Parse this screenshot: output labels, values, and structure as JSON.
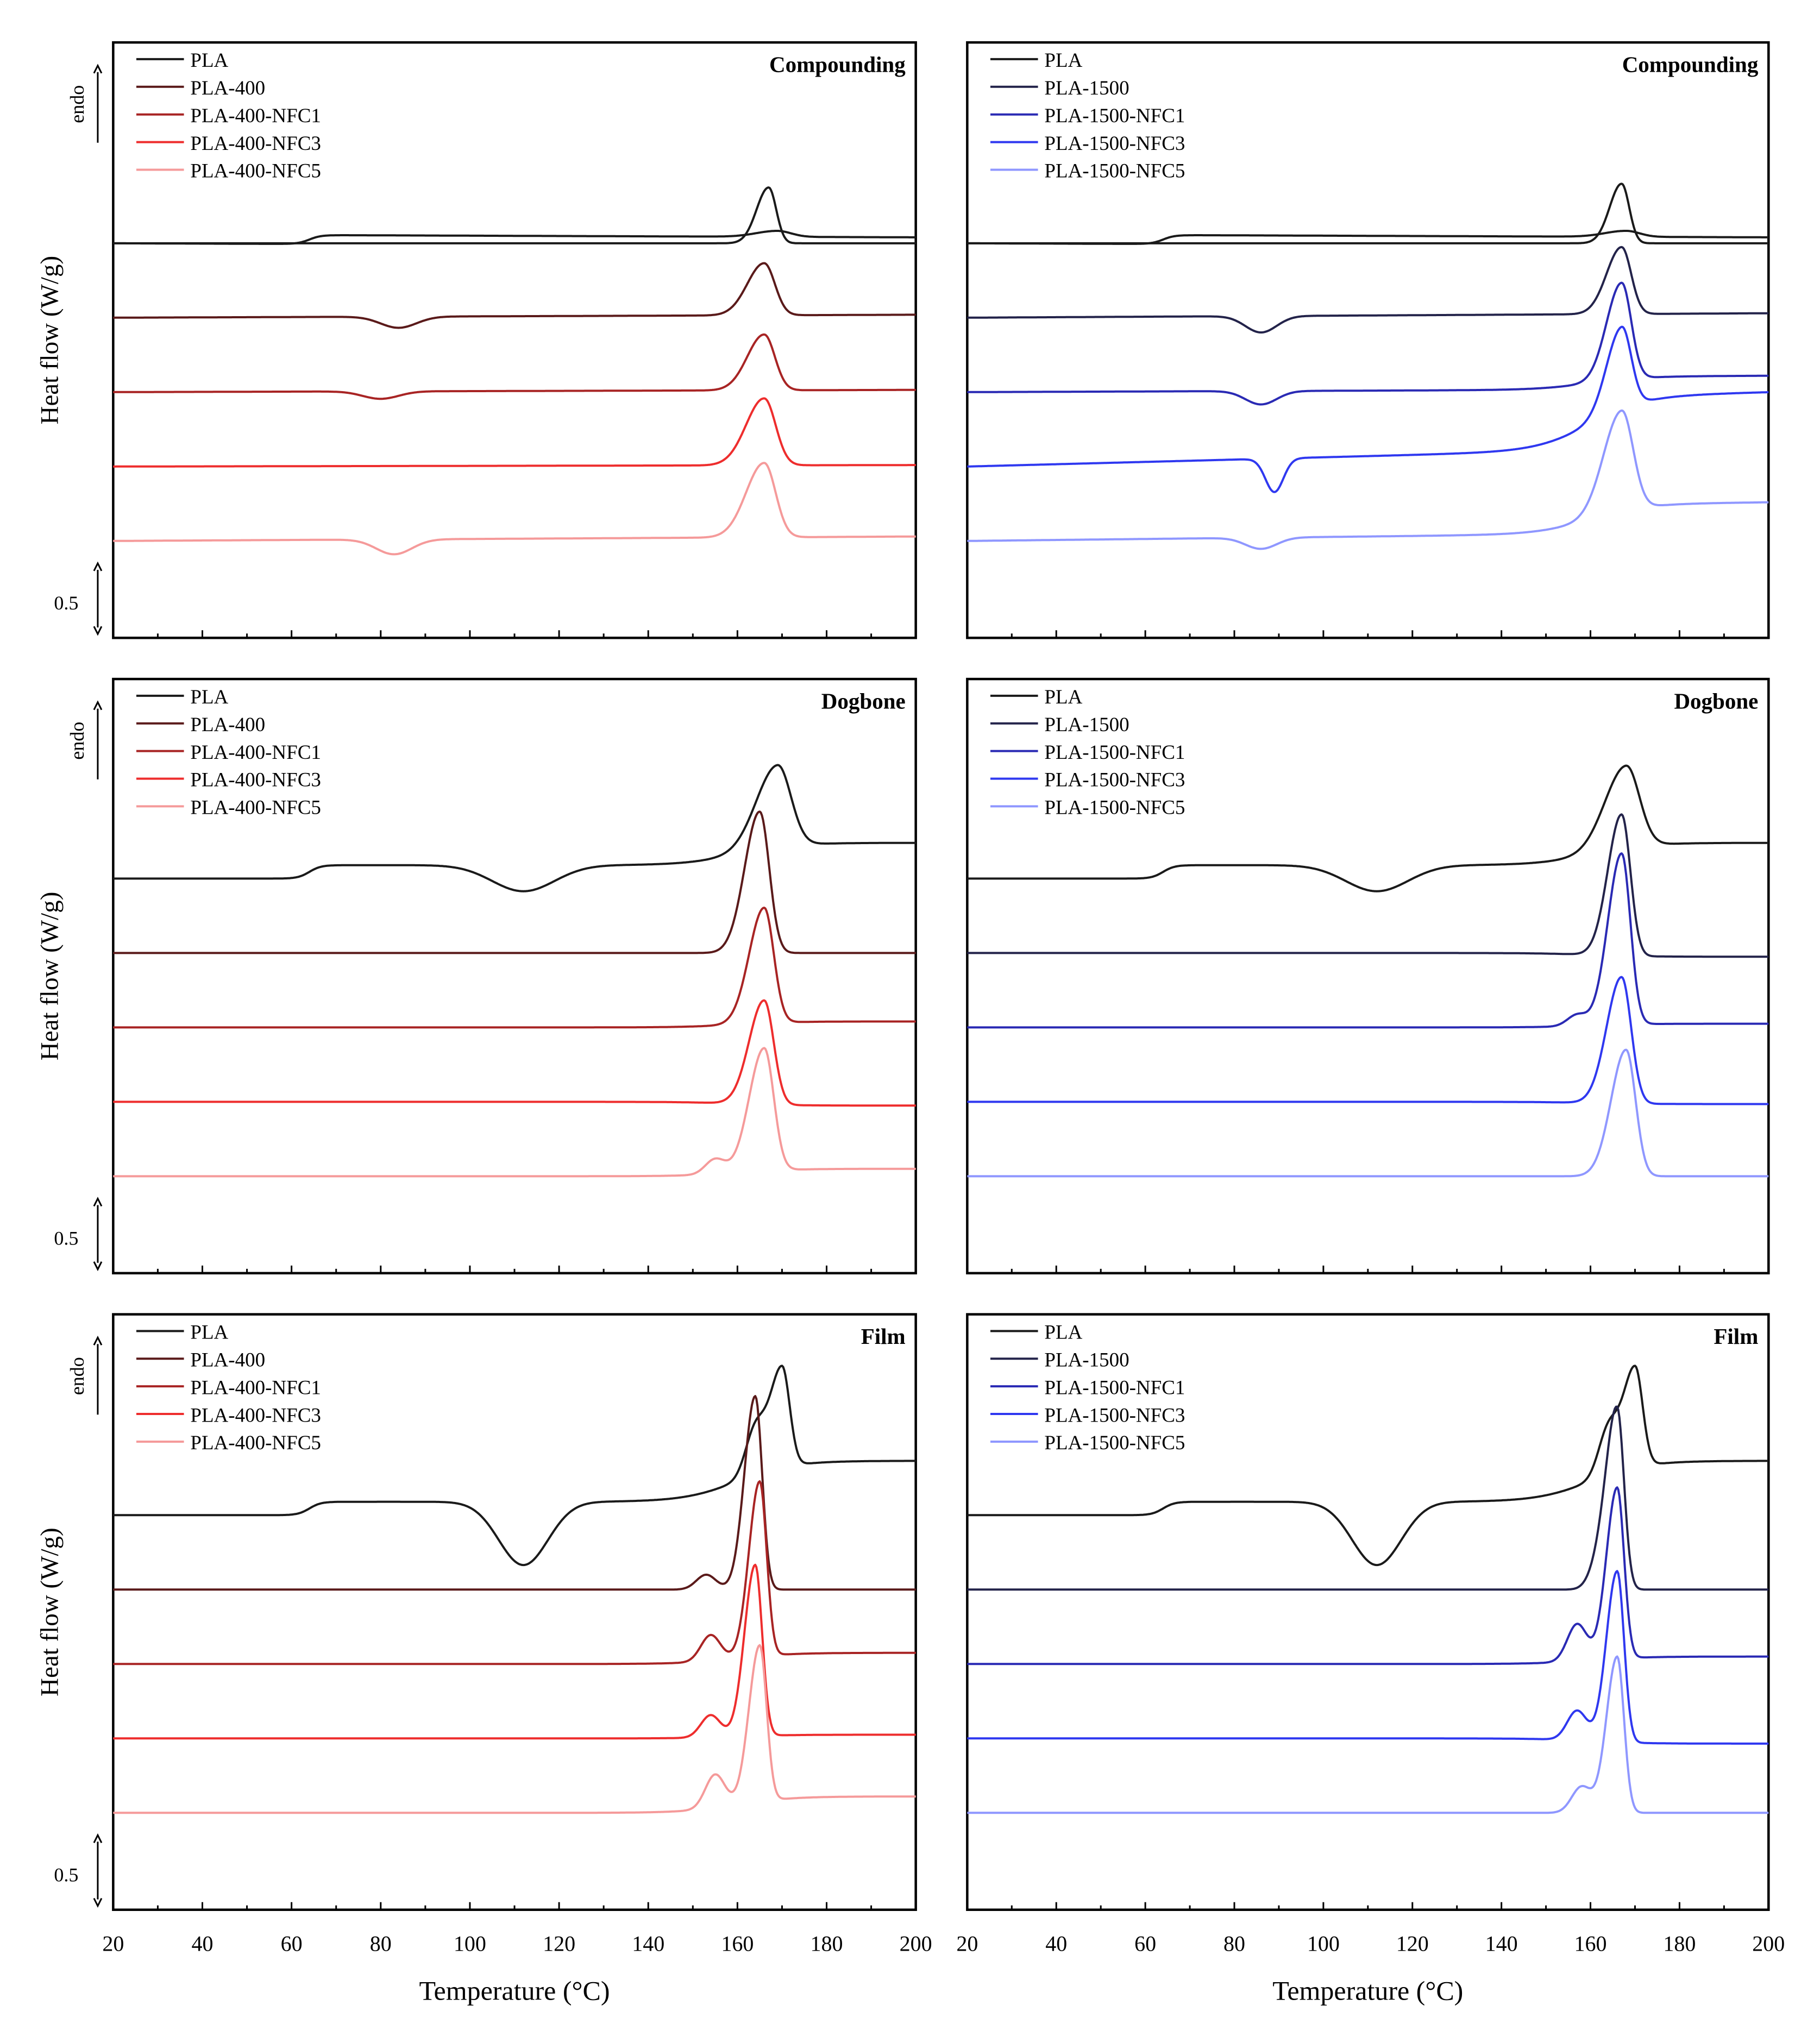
{
  "figure": {
    "y_axis_label": "Heat flow (W/g)",
    "x_axis_label": "Temperature (°C)",
    "endo_label": "endo",
    "scale_label": "0.5"
  },
  "colors": {
    "PLA": "#1a1a1a",
    "PLA-400": "#5a1a1a",
    "PLA-400-NFC1": "#a82424",
    "PLA-400-NFC3": "#ee2d2d",
    "PLA-400-NFC5": "#f59a9a",
    "PLA-1500": "#23234a",
    "PLA-1500-NFC1": "#2a2ab4",
    "PLA-1500-NFC3": "#2f38f0",
    "PLA-1500-NFC5": "#8f97ff"
  },
  "chart_data": [
    {
      "type": "line",
      "panel": "top-left",
      "title": "Compounding",
      "xlabel": "",
      "ylabel": "Heat flow (W/g)",
      "xlim": [
        20,
        200
      ],
      "x_ticks": [
        "20",
        "40",
        "60",
        "80",
        "100",
        "120",
        "140",
        "160",
        "180",
        "200"
      ],
      "legend": [
        "PLA",
        "PLA-400",
        "PLA-400-NFC1",
        "PLA-400-NFC3",
        "PLA-400-NFC5"
      ],
      "series": [
        {
          "name": "PLA",
          "offset": 4.3,
          "glass_c": 64,
          "glass_h": 0.12,
          "cold_c": null,
          "cold_d": 0,
          "cold_w": 0,
          "melt_c": 169,
          "melt_h": 0.08,
          "melt_w": 3.5,
          "shoulder_c": null,
          "shoulder_h": 0,
          "end_rise": 0,
          "lo_drift": -0.04
        },
        {
          "name": "PLA",
          "offset": 4.3,
          "glass_c": null,
          "glass_h": 0,
          "cold_c": null,
          "cold_d": 0,
          "cold_w": 0,
          "melt_c": 167,
          "melt_h": 0.75,
          "melt_w": 2.0,
          "shoulder_c": null,
          "shoulder_h": 0,
          "end_rise": 0,
          "lo_drift": 0
        },
        {
          "name": "PLA-400",
          "offset": 3.3,
          "glass_c": null,
          "glass_h": 0,
          "cold_c": 84,
          "cold_d": 0.15,
          "cold_w": 4,
          "melt_c": 166,
          "melt_h": 0.7,
          "melt_w": 2.8,
          "shoulder_c": null,
          "shoulder_h": 0,
          "end_rise": 0,
          "lo_drift": 0.04
        },
        {
          "name": "PLA-400-NFC1",
          "offset": 2.3,
          "glass_c": null,
          "glass_h": 0,
          "cold_c": 80,
          "cold_d": 0.1,
          "cold_w": 4,
          "melt_c": 166,
          "melt_h": 0.75,
          "melt_w": 2.8,
          "shoulder_c": null,
          "shoulder_h": 0,
          "end_rise": 0,
          "lo_drift": 0.03
        },
        {
          "name": "PLA-400-NFC3",
          "offset": 1.3,
          "glass_c": null,
          "glass_h": 0,
          "cold_c": null,
          "cold_d": 0,
          "cold_w": 0,
          "melt_c": 166,
          "melt_h": 0.9,
          "melt_w": 3.0,
          "shoulder_c": null,
          "shoulder_h": 0,
          "end_rise": 0,
          "lo_drift": 0.02
        },
        {
          "name": "PLA-400-NFC5",
          "offset": 0.3,
          "glass_c": null,
          "glass_h": 0,
          "cold_c": 83,
          "cold_d": 0.2,
          "cold_w": 4,
          "melt_c": 166,
          "melt_h": 1.0,
          "melt_w": 3.0,
          "shoulder_c": null,
          "shoulder_h": 0,
          "end_rise": 0,
          "lo_drift": 0.06
        }
      ]
    },
    {
      "type": "line",
      "panel": "top-right",
      "title": "Compounding",
      "xlabel": "",
      "ylabel": "",
      "xlim": [
        20,
        200
      ],
      "x_ticks": [
        "20",
        "40",
        "60",
        "80",
        "100",
        "120",
        "140",
        "160",
        "180",
        "200"
      ],
      "legend": [
        "PLA",
        "PLA-1500",
        "PLA-1500-NFC1",
        "PLA-1500-NFC3",
        "PLA-1500-NFC5"
      ],
      "series": [
        {
          "name": "PLA",
          "offset": 4.3,
          "glass_c": 64,
          "glass_h": 0.12,
          "cold_c": null,
          "cold_d": 0,
          "cold_w": 0,
          "melt_c": 168,
          "melt_h": 0.08,
          "melt_w": 3.5,
          "shoulder_c": null,
          "shoulder_h": 0,
          "end_rise": 0,
          "lo_drift": -0.04
        },
        {
          "name": "PLA",
          "offset": 4.3,
          "glass_c": null,
          "glass_h": 0,
          "cold_c": null,
          "cold_d": 0,
          "cold_w": 0,
          "melt_c": 167,
          "melt_h": 0.8,
          "melt_w": 2.0,
          "shoulder_c": null,
          "shoulder_h": 0,
          "end_rise": 0,
          "lo_drift": 0
        },
        {
          "name": "PLA-1500",
          "offset": 3.3,
          "glass_c": null,
          "glass_h": 0,
          "cold_c": 86,
          "cold_d": 0.22,
          "cold_w": 3.5,
          "melt_c": 167,
          "melt_h": 0.9,
          "melt_w": 2.5,
          "shoulder_c": null,
          "shoulder_h": 0,
          "end_rise": 0,
          "lo_drift": 0.06
        },
        {
          "name": "PLA-1500-NFC1",
          "offset": 2.3,
          "glass_c": null,
          "glass_h": 0,
          "cold_c": 86,
          "cold_d": 0.18,
          "cold_w": 3.5,
          "melt_c": 167,
          "melt_h": 1.3,
          "melt_w": 2.5,
          "shoulder_c": null,
          "shoulder_h": 0,
          "end_rise": 0.18,
          "lo_drift": 0.04
        },
        {
          "name": "PLA-1500-NFC3",
          "offset": 1.3,
          "glass_c": null,
          "glass_h": 0,
          "cold_c": 89,
          "cold_d": 0.45,
          "cold_w": 2.0,
          "melt_c": 167,
          "melt_h": 1.1,
          "melt_w": 2.5,
          "shoulder_c": null,
          "shoulder_h": 0,
          "end_rise": 0.72,
          "lo_drift": 0.28
        },
        {
          "name": "PLA-1500-NFC5",
          "offset": 0.3,
          "glass_c": null,
          "glass_h": 0,
          "cold_c": 86,
          "cold_d": 0.15,
          "cold_w": 3.5,
          "melt_c": 167,
          "melt_h": 1.35,
          "melt_w": 3.0,
          "shoulder_c": null,
          "shoulder_h": 0,
          "end_rise": 0.4,
          "lo_drift": 0.12
        }
      ]
    },
    {
      "type": "line",
      "panel": "middle-left",
      "title": "Dogbone",
      "xlabel": "",
      "ylabel": "Heat flow (W/g)",
      "xlim": [
        20,
        200
      ],
      "x_ticks": [
        "20",
        "40",
        "60",
        "80",
        "100",
        "120",
        "140",
        "160",
        "180",
        "200"
      ],
      "legend": [
        "PLA",
        "PLA-400",
        "PLA-400-NFC1",
        "PLA-400-NFC3",
        "PLA-400-NFC5"
      ],
      "series": [
        {
          "name": "PLA",
          "offset": 4.3,
          "glass_c": 64,
          "glass_h": 0.18,
          "cold_c": 112,
          "cold_d": 0.35,
          "cold_w": 7,
          "melt_c": 169,
          "melt_h": 1.1,
          "melt_w": 3.5,
          "shoulder_c": null,
          "shoulder_h": 0,
          "end_rise": 0.3,
          "lo_drift": 0
        },
        {
          "name": "PLA-400",
          "offset": 3.3,
          "glass_c": null,
          "glass_h": 0,
          "cold_c": null,
          "cold_d": 0,
          "cold_w": 0,
          "melt_c": 165,
          "melt_h": 1.9,
          "melt_w": 2.5,
          "shoulder_c": null,
          "shoulder_h": 0,
          "end_rise": 0,
          "lo_drift": 0
        },
        {
          "name": "PLA-400-NFC1",
          "offset": 2.3,
          "glass_c": null,
          "glass_h": 0,
          "cold_c": null,
          "cold_d": 0,
          "cold_w": 0,
          "melt_c": 166,
          "melt_h": 1.55,
          "melt_w": 2.5,
          "shoulder_c": null,
          "shoulder_h": 0,
          "end_rise": 0.08,
          "lo_drift": 0
        },
        {
          "name": "PLA-400-NFC3",
          "offset": 1.3,
          "glass_c": null,
          "glass_h": 0,
          "cold_c": null,
          "cold_d": 0,
          "cold_w": 0,
          "melt_c": 166,
          "melt_h": 1.4,
          "melt_w": 2.5,
          "shoulder_c": null,
          "shoulder_h": 0,
          "end_rise": -0.05,
          "lo_drift": 0
        },
        {
          "name": "PLA-400-NFC5",
          "offset": 0.3,
          "glass_c": null,
          "glass_h": 0,
          "cold_c": null,
          "cold_d": 0,
          "cold_w": 0,
          "melt_c": 166,
          "melt_h": 1.65,
          "melt_w": 2.5,
          "shoulder_c": 155,
          "shoulder_h": 0.2,
          "end_rise": 0.1,
          "lo_drift": 0
        }
      ]
    },
    {
      "type": "line",
      "panel": "middle-right",
      "title": "Dogbone",
      "xlabel": "",
      "ylabel": "",
      "xlim": [
        20,
        200
      ],
      "x_ticks": [
        "20",
        "40",
        "60",
        "80",
        "100",
        "120",
        "140",
        "160",
        "180",
        "200"
      ],
      "legend": [
        "PLA",
        "PLA-1500",
        "PLA-1500-NFC1",
        "PLA-1500-NFC3",
        "PLA-1500-NFC5"
      ],
      "series": [
        {
          "name": "PLA",
          "offset": 4.3,
          "glass_c": 64,
          "glass_h": 0.18,
          "cold_c": 112,
          "cold_d": 0.35,
          "cold_w": 7,
          "melt_c": 168,
          "melt_h": 1.1,
          "melt_w": 3.5,
          "shoulder_c": null,
          "shoulder_h": 0,
          "end_rise": 0.3,
          "lo_drift": 0
        },
        {
          "name": "PLA-1500",
          "offset": 3.3,
          "glass_c": null,
          "glass_h": 0,
          "cold_c": null,
          "cold_d": 0,
          "cold_w": 0,
          "melt_c": 167,
          "melt_h": 1.9,
          "melt_w": 2.3,
          "shoulder_c": null,
          "shoulder_h": 0,
          "end_rise": -0.05,
          "lo_drift": 0
        },
        {
          "name": "PLA-1500-NFC1",
          "offset": 2.3,
          "glass_c": null,
          "glass_h": 0,
          "cold_c": null,
          "cold_d": 0,
          "cold_w": 0,
          "melt_c": 167,
          "melt_h": 2.3,
          "melt_w": 2.3,
          "shoulder_c": 157,
          "shoulder_h": 0.15,
          "end_rise": 0.05,
          "lo_drift": 0
        },
        {
          "name": "PLA-1500-NFC3",
          "offset": 1.3,
          "glass_c": null,
          "glass_h": 0,
          "cold_c": null,
          "cold_d": 0,
          "cold_w": 0,
          "melt_c": 167,
          "melt_h": 1.7,
          "melt_w": 2.5,
          "shoulder_c": null,
          "shoulder_h": 0,
          "end_rise": -0.03,
          "lo_drift": 0
        },
        {
          "name": "PLA-1500-NFC5",
          "offset": 0.3,
          "glass_c": null,
          "glass_h": 0,
          "cold_c": null,
          "cold_d": 0,
          "cold_w": 0,
          "melt_c": 168,
          "melt_h": 1.7,
          "melt_w": 2.5,
          "shoulder_c": null,
          "shoulder_h": 0,
          "end_rise": 0,
          "lo_drift": 0
        }
      ]
    },
    {
      "type": "line",
      "panel": "bottom-left",
      "title": "Film",
      "xlabel": "Temperature (°C)",
      "ylabel": "Heat flow (W/g)",
      "xlim": [
        20,
        200
      ],
      "x_ticks": [
        "20",
        "40",
        "60",
        "80",
        "100",
        "120",
        "140",
        "160",
        "180",
        "200"
      ],
      "legend": [
        "PLA",
        "PLA-400",
        "PLA-400-NFC1",
        "PLA-400-NFC3",
        "PLA-400-NFC5"
      ],
      "series": [
        {
          "name": "PLA",
          "offset": 4.3,
          "glass_c": 64,
          "glass_h": 0.18,
          "cold_c": 112,
          "cold_d": 0.85,
          "cold_w": 5.5,
          "melt_c": 170,
          "melt_h": 1.35,
          "melt_w": 2.0,
          "shoulder_c": 164,
          "shoulder_h": 0.6,
          "end_rise": 0.55,
          "lo_drift": 0
        },
        {
          "name": "PLA-400",
          "offset": 3.3,
          "glass_c": null,
          "glass_h": 0,
          "cold_c": null,
          "cold_d": 0,
          "cold_w": 0,
          "melt_c": 164,
          "melt_h": 2.6,
          "melt_w": 1.8,
          "shoulder_c": 153,
          "shoulder_h": 0.2,
          "end_rise": 0,
          "lo_drift": 0
        },
        {
          "name": "PLA-400-NFC1",
          "offset": 2.3,
          "glass_c": null,
          "glass_h": 0,
          "cold_c": null,
          "cold_d": 0,
          "cold_w": 0,
          "melt_c": 165,
          "melt_h": 2.35,
          "melt_w": 1.8,
          "shoulder_c": 154,
          "shoulder_h": 0.35,
          "end_rise": 0.15,
          "lo_drift": 0
        },
        {
          "name": "PLA-400-NFC3",
          "offset": 1.3,
          "glass_c": null,
          "glass_h": 0,
          "cold_c": null,
          "cold_d": 0,
          "cold_w": 0,
          "melt_c": 164,
          "melt_h": 2.3,
          "melt_w": 1.8,
          "shoulder_c": 154,
          "shoulder_h": 0.3,
          "end_rise": 0.05,
          "lo_drift": 0
        },
        {
          "name": "PLA-400-NFC5",
          "offset": 0.3,
          "glass_c": null,
          "glass_h": 0,
          "cold_c": null,
          "cold_d": 0,
          "cold_w": 0,
          "melt_c": 165,
          "melt_h": 2.1,
          "melt_w": 1.8,
          "shoulder_c": 155,
          "shoulder_h": 0.45,
          "end_rise": 0.22,
          "lo_drift": 0
        }
      ]
    },
    {
      "type": "line",
      "panel": "bottom-right",
      "title": "Film",
      "xlabel": "Temperature (°C)",
      "ylabel": "",
      "xlim": [
        20,
        200
      ],
      "x_ticks": [
        "20",
        "40",
        "60",
        "80",
        "100",
        "120",
        "140",
        "160",
        "180",
        "200"
      ],
      "legend": [
        "PLA",
        "PLA-1500",
        "PLA-1500-NFC1",
        "PLA-1500-NFC3",
        "PLA-1500-NFC5"
      ],
      "series": [
        {
          "name": "PLA",
          "offset": 4.3,
          "glass_c": 64,
          "glass_h": 0.18,
          "cold_c": 112,
          "cold_d": 0.85,
          "cold_w": 5.5,
          "melt_c": 170,
          "melt_h": 1.35,
          "melt_w": 2.0,
          "shoulder_c": 164,
          "shoulder_h": 0.6,
          "end_rise": 0.55,
          "lo_drift": 0
        },
        {
          "name": "PLA-1500",
          "offset": 3.3,
          "glass_c": null,
          "glass_h": 0,
          "cold_c": null,
          "cold_d": 0,
          "cold_w": 0,
          "melt_c": 166,
          "melt_h": 2.4,
          "melt_w": 1.8,
          "shoulder_c": 162,
          "shoulder_h": 0.3,
          "end_rise": 0,
          "lo_drift": 0
        },
        {
          "name": "PLA-1500-NFC1",
          "offset": 2.3,
          "glass_c": null,
          "glass_h": 0,
          "cold_c": null,
          "cold_d": 0,
          "cold_w": 0,
          "melt_c": 166,
          "melt_h": 2.3,
          "melt_w": 1.8,
          "shoulder_c": 157,
          "shoulder_h": 0.5,
          "end_rise": 0.1,
          "lo_drift": 0
        },
        {
          "name": "PLA-1500-NFC3",
          "offset": 1.3,
          "glass_c": null,
          "glass_h": 0,
          "cold_c": null,
          "cold_d": 0,
          "cold_w": 0,
          "melt_c": 166,
          "melt_h": 2.3,
          "melt_w": 1.8,
          "shoulder_c": 157,
          "shoulder_h": 0.4,
          "end_rise": -0.07,
          "lo_drift": 0
        },
        {
          "name": "PLA-1500-NFC5",
          "offset": 0.3,
          "glass_c": null,
          "glass_h": 0,
          "cold_c": null,
          "cold_d": 0,
          "cold_w": 0,
          "melt_c": 166,
          "melt_h": 2.1,
          "melt_w": 1.8,
          "shoulder_c": 158,
          "shoulder_h": 0.35,
          "end_rise": 0,
          "lo_drift": 0
        }
      ]
    }
  ]
}
